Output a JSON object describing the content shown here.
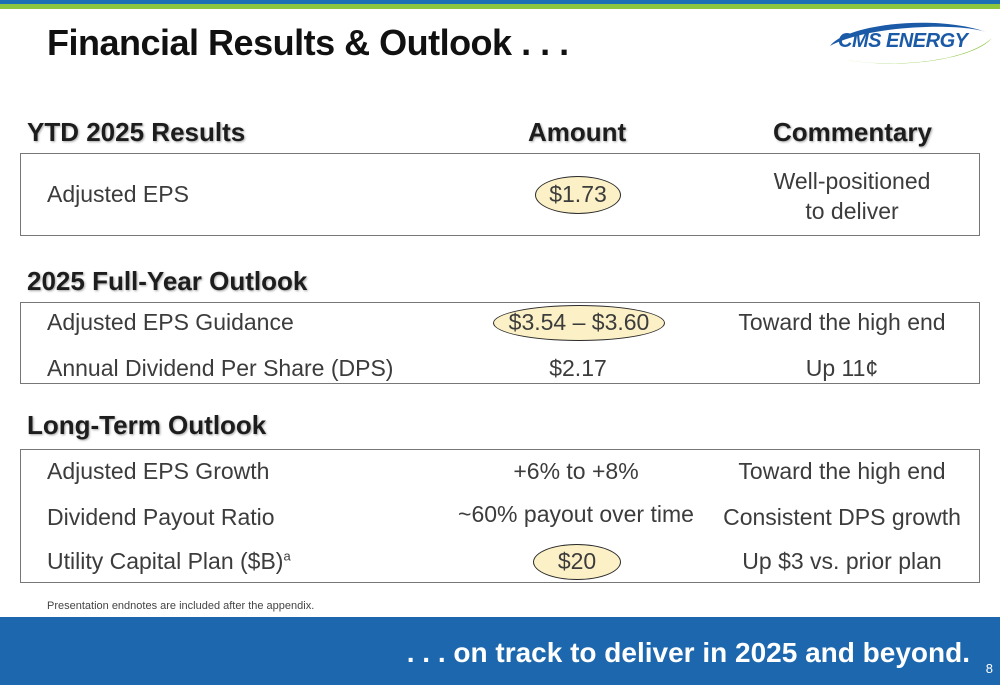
{
  "title": "Financial Results & Outlook . . .",
  "logo": {
    "text": "CMS ENERGY"
  },
  "headers": {
    "ytd": "YTD 2025 Results",
    "amount": "Amount",
    "commentary": "Commentary",
    "full_year": "2025 Full-Year Outlook",
    "long_term": "Long-Term Outlook"
  },
  "ytd_rows": [
    {
      "label": "Adjusted EPS",
      "amount": "$1.73",
      "commentary_line1": "Well-positioned",
      "commentary_line2": "to deliver"
    }
  ],
  "full_year_rows": [
    {
      "label": "Adjusted EPS Guidance",
      "amount": "$3.54 – $3.60",
      "commentary": "Toward the high end"
    },
    {
      "label": "Annual Dividend Per Share (DPS)",
      "amount": "$2.17",
      "commentary": "Up 11¢"
    }
  ],
  "long_term_rows": [
    {
      "label": "Adjusted EPS Growth",
      "amount": "+6% to +8%",
      "commentary": "Toward the high end"
    },
    {
      "label": "Dividend Payout Ratio",
      "amount": "~60% payout over time",
      "commentary": "Consistent DPS growth"
    },
    {
      "label": "Utility Capital Plan ($B)",
      "label_sup": "a",
      "amount": "$20",
      "commentary": "Up $3 vs. prior plan"
    }
  ],
  "footnote": "Presentation endnotes are included after the appendix.",
  "footer": {
    "tagline": ". . . on track to deliver in 2025 and beyond.",
    "page_number": "8"
  },
  "colors": {
    "top_blue": "#1d6fb3",
    "top_green": "#8cc63f",
    "footer_blue": "#1c67ad",
    "highlight": "#fbf0c6"
  }
}
